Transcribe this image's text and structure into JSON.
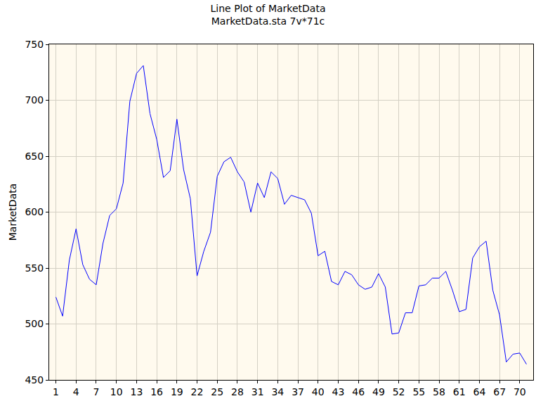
{
  "chart_data": {
    "type": "line",
    "title": "Line Plot of MarketData",
    "subtitle": "MarketData.sta 7v*71c",
    "ylabel": "MarketData",
    "x": [
      1,
      2,
      3,
      4,
      5,
      6,
      7,
      8,
      9,
      10,
      11,
      12,
      13,
      14,
      15,
      16,
      17,
      18,
      19,
      20,
      21,
      22,
      23,
      24,
      25,
      26,
      27,
      28,
      29,
      30,
      31,
      32,
      33,
      34,
      35,
      36,
      37,
      38,
      39,
      40,
      41,
      42,
      43,
      44,
      45,
      46,
      47,
      48,
      49,
      50,
      51,
      52,
      53,
      54,
      55,
      56,
      57,
      58,
      59,
      60,
      61,
      62,
      63,
      64,
      65,
      66,
      67,
      68,
      69,
      70,
      71
    ],
    "values": [
      524,
      507,
      557,
      585,
      553,
      540,
      535,
      572,
      597,
      603,
      626,
      699,
      724,
      731,
      688,
      665,
      631,
      637,
      683,
      638,
      612,
      543,
      565,
      582,
      632,
      645,
      649,
      636,
      627,
      600,
      626,
      613,
      636,
      630,
      607,
      615,
      613,
      611,
      599,
      561,
      565,
      538,
      535,
      547,
      544,
      535,
      531,
      533,
      545,
      533,
      491,
      492,
      510,
      510,
      534,
      535,
      541,
      541,
      547,
      530,
      511,
      513,
      559,
      569,
      574,
      530,
      508,
      466,
      473,
      474,
      464
    ],
    "color": "#0000ff",
    "xlim": [
      0,
      72
    ],
    "xticks": [
      1,
      4,
      7,
      10,
      13,
      16,
      19,
      22,
      25,
      28,
      31,
      34,
      37,
      40,
      43,
      46,
      49,
      52,
      55,
      58,
      61,
      64,
      67,
      70
    ],
    "ylim": [
      450,
      750
    ],
    "yticks": [
      450,
      500,
      550,
      600,
      650,
      700,
      750
    ],
    "grid": true
  }
}
